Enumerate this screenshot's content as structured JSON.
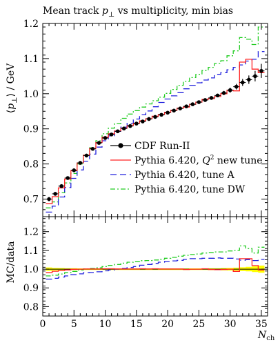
{
  "chart_data": {
    "type": "line",
    "title": "Mean track p⊥ vs multiplicity, min bias",
    "title_parts": [
      "Mean track ",
      "p",
      "⊥",
      " vs multiplicity, min bias"
    ],
    "ylabel": "⟨p⊥⟩ / GeV",
    "ylabel_parts": [
      "⟨",
      "p",
      "⊥",
      "⟩ / GeV"
    ],
    "ratio_ylabel": "MC/data",
    "xlabel": "Nch",
    "xlabel_parts": [
      "N",
      "ch"
    ],
    "xlim": [
      0,
      36
    ],
    "ylim": [
      0.65,
      1.2
    ],
    "ratio_ylim": [
      0.75,
      1.28
    ],
    "x_ticks": [
      "0",
      "5",
      "10",
      "15",
      "20",
      "25",
      "30",
      "35"
    ],
    "y_ticks": [
      "0.7",
      "0.8",
      "0.9",
      "1.0",
      "1.1",
      "1.2"
    ],
    "ratio_y_ticks": [
      "0.8",
      "0.9",
      "1.0",
      "1.1",
      "1.2"
    ],
    "legend_position": "center-right",
    "grid": false,
    "x": [
      1,
      2,
      3,
      4,
      5,
      6,
      7,
      8,
      9,
      10,
      11,
      12,
      13,
      14,
      15,
      16,
      17,
      18,
      19,
      20,
      21,
      22,
      23,
      24,
      25,
      26,
      27,
      28,
      29,
      30,
      31,
      32,
      33,
      34,
      35
    ],
    "series": [
      {
        "name": "CDF Run-II",
        "style": "points",
        "color": "#000000",
        "values": [
          0.7,
          0.715,
          0.737,
          0.76,
          0.782,
          0.803,
          0.824,
          0.843,
          0.86,
          0.874,
          0.884,
          0.893,
          0.901,
          0.908,
          0.915,
          0.921,
          0.928,
          0.934,
          0.94,
          0.946,
          0.952,
          0.958,
          0.964,
          0.97,
          0.976,
          0.982,
          0.988,
          0.995,
          1.002,
          1.01,
          1.02,
          1.032,
          1.04,
          1.05,
          1.065
        ],
        "errors": [
          0.006,
          0.005,
          0.004,
          0.004,
          0.004,
          0.003,
          0.003,
          0.003,
          0.003,
          0.003,
          0.003,
          0.003,
          0.003,
          0.003,
          0.003,
          0.003,
          0.003,
          0.003,
          0.003,
          0.003,
          0.003,
          0.003,
          0.003,
          0.004,
          0.004,
          0.004,
          0.005,
          0.005,
          0.006,
          0.007,
          0.008,
          0.01,
          0.012,
          0.015,
          0.02
        ]
      },
      {
        "name": "Pythia 6.420, Q² new tune",
        "name_parts": [
          "Pythia 6.420, ",
          "Q",
          "2",
          " new tune"
        ],
        "style": "solid",
        "color": "#ff2222",
        "values": [
          0.687,
          0.707,
          0.732,
          0.757,
          0.781,
          0.803,
          0.825,
          0.844,
          0.861,
          0.876,
          0.886,
          0.894,
          0.902,
          0.909,
          0.916,
          0.923,
          0.929,
          0.936,
          0.941,
          0.947,
          0.953,
          0.959,
          0.962,
          0.97,
          0.976,
          0.984,
          0.986,
          0.992,
          1.0,
          1.01,
          1.008,
          1.09,
          1.098,
          1.07,
          1.06
        ]
      },
      {
        "name": "Pythia 6.420, tune A",
        "style": "dashed",
        "color": "#2222dd",
        "values": [
          0.663,
          0.68,
          0.706,
          0.733,
          0.759,
          0.783,
          0.808,
          0.828,
          0.848,
          0.866,
          0.88,
          0.893,
          0.905,
          0.916,
          0.928,
          0.94,
          0.951,
          0.963,
          0.975,
          0.985,
          0.994,
          1.003,
          1.014,
          1.024,
          1.031,
          1.039,
          1.045,
          1.055,
          1.06,
          1.068,
          1.075,
          1.082,
          1.093,
          1.098,
          1.12
        ]
      },
      {
        "name": "Pythia 6.420, tune DW",
        "style": "dashdot",
        "color": "#22cc22",
        "values": [
          0.675,
          0.692,
          0.718,
          0.746,
          0.773,
          0.8,
          0.825,
          0.846,
          0.866,
          0.886,
          0.902,
          0.915,
          0.93,
          0.942,
          0.952,
          0.962,
          0.971,
          0.98,
          0.99,
          1.001,
          1.012,
          1.024,
          1.035,
          1.046,
          1.055,
          1.066,
          1.075,
          1.086,
          1.094,
          1.108,
          1.122,
          1.16,
          1.155,
          1.14,
          1.19
        ]
      }
    ],
    "ratio": {
      "reference": 1.0,
      "band_color": "#ffff00",
      "band_halfwidth": [
        0.009,
        0.007,
        0.006,
        0.005,
        0.005,
        0.004,
        0.004,
        0.004,
        0.004,
        0.004,
        0.004,
        0.004,
        0.004,
        0.004,
        0.004,
        0.004,
        0.004,
        0.004,
        0.004,
        0.004,
        0.004,
        0.004,
        0.004,
        0.004,
        0.004,
        0.004,
        0.005,
        0.005,
        0.006,
        0.007,
        0.008,
        0.01,
        0.012,
        0.015,
        0.019
      ],
      "series": [
        {
          "name": "Pythia 6.420, Q² new tune",
          "color": "#ff2222",
          "style": "solid",
          "values": [
            0.981,
            0.989,
            0.993,
            0.996,
            0.999,
            1.0,
            1.001,
            1.001,
            1.001,
            1.002,
            1.002,
            1.001,
            1.001,
            1.001,
            1.001,
            1.002,
            1.001,
            1.002,
            1.001,
            1.001,
            1.001,
            1.001,
            0.998,
            1.0,
            1.0,
            1.002,
            0.998,
            0.997,
            0.998,
            1.0,
            0.988,
            1.056,
            1.056,
            1.019,
            0.995
          ]
        },
        {
          "name": "Pythia 6.420, tune A",
          "color": "#2222dd",
          "style": "dashed",
          "values": [
            0.947,
            0.951,
            0.958,
            0.964,
            0.971,
            0.975,
            0.981,
            0.982,
            0.986,
            0.991,
            0.995,
            1.0,
            1.004,
            1.009,
            1.014,
            1.021,
            1.025,
            1.031,
            1.037,
            1.041,
            1.044,
            1.047,
            1.052,
            1.056,
            1.056,
            1.058,
            1.058,
            1.06,
            1.058,
            1.058,
            1.054,
            1.048,
            1.051,
            1.046,
            1.052
          ]
        },
        {
          "name": "Pythia 6.420, tune DW",
          "color": "#22cc22",
          "style": "dashdot",
          "values": [
            0.964,
            0.968,
            0.974,
            0.981,
            0.988,
            0.996,
            1.001,
            1.004,
            1.007,
            1.014,
            1.02,
            1.025,
            1.032,
            1.037,
            1.04,
            1.045,
            1.046,
            1.049,
            1.053,
            1.058,
            1.063,
            1.069,
            1.074,
            1.078,
            1.081,
            1.086,
            1.088,
            1.092,
            1.092,
            1.097,
            1.1,
            1.124,
            1.11,
            1.086,
            1.117
          ]
        }
      ]
    }
  }
}
